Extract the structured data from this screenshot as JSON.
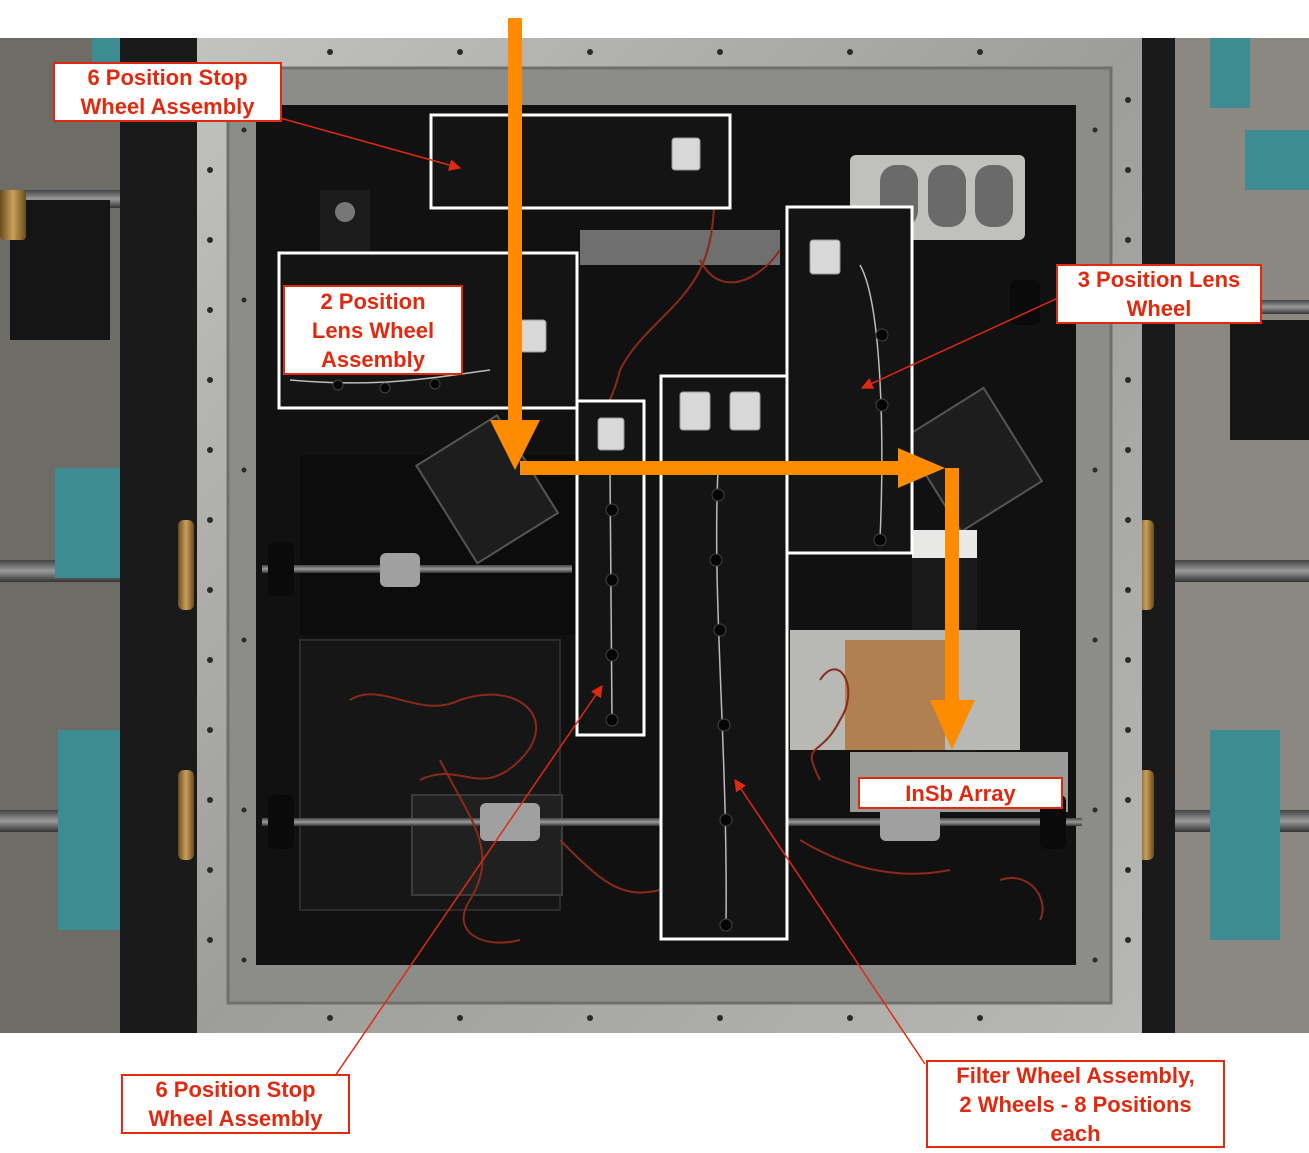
{
  "photo": {
    "colors": {
      "accent_arrow": "#ff8c00",
      "label_red": "#e02a10",
      "highlight_box": "#ffffff",
      "frame_metal": "#a8a8a6",
      "interior": "#111111",
      "teal_clamp": "#3d8b93"
    }
  },
  "labels": {
    "stop_wheel_top": {
      "line1": "6 Position Stop",
      "line2": "Wheel Assembly"
    },
    "lens_wheel_2pos": {
      "line1": "2 Position",
      "line2": "Lens Wheel",
      "line3": "Assembly"
    },
    "lens_wheel_3pos": {
      "line1": "3 Position Lens",
      "line2": "Wheel"
    },
    "insb_array": {
      "line1": "InSb Array"
    },
    "stop_wheel_bottom": {
      "line1": "6 Position Stop",
      "line2": "Wheel Assembly"
    },
    "filter_wheel": {
      "line1": "Filter Wheel Assembly,",
      "line2": "2 Wheels - 8 Positions",
      "line3": "each"
    }
  }
}
